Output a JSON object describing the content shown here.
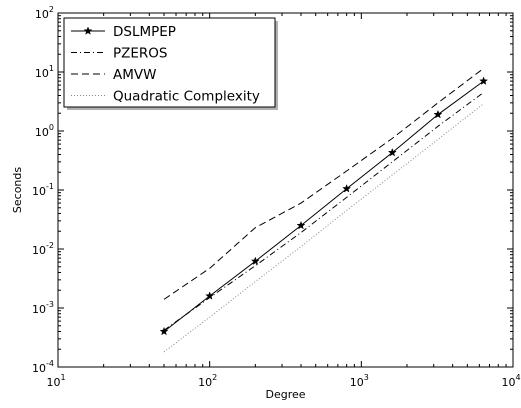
{
  "chart_data": {
    "type": "line",
    "xlabel": "Degree",
    "ylabel": "Seconds",
    "xscale": "log",
    "yscale": "log",
    "xlim": [
      10,
      10000
    ],
    "ylim": [
      0.0001,
      100
    ],
    "x_tick_labels": [
      {
        "value": 10,
        "base": "10",
        "exp": "1"
      },
      {
        "value": 100,
        "base": "10",
        "exp": "2"
      },
      {
        "value": 1000,
        "base": "10",
        "exp": "3"
      },
      {
        "value": 10000,
        "base": "10",
        "exp": "4"
      }
    ],
    "y_tick_labels": [
      {
        "value": 0.0001,
        "base": "10",
        "exp": "-4"
      },
      {
        "value": 0.001,
        "base": "10",
        "exp": "-3"
      },
      {
        "value": 0.01,
        "base": "10",
        "exp": "-2"
      },
      {
        "value": 0.1,
        "base": "10",
        "exp": "-1"
      },
      {
        "value": 1,
        "base": "10",
        "exp": "0"
      },
      {
        "value": 10,
        "base": "10",
        "exp": "1"
      },
      {
        "value": 100,
        "base": "10",
        "exp": "2"
      }
    ],
    "grid": false,
    "legend_position": "top-left",
    "series": [
      {
        "name": "DSLMPEP",
        "style": "solid-star",
        "color": "#000000",
        "x": [
          50,
          100,
          200,
          400,
          800,
          1600,
          3200,
          6400
        ],
        "y": [
          0.0004,
          0.0016,
          0.0062,
          0.025,
          0.105,
          0.43,
          1.9,
          7.0
        ]
      },
      {
        "name": "PZEROS",
        "style": "dashdot",
        "color": "#000000",
        "x": [
          50,
          100,
          200,
          400,
          800,
          1600,
          3200,
          6400
        ],
        "y": [
          0.00042,
          0.0015,
          0.0052,
          0.019,
          0.075,
          0.3,
          1.2,
          4.5
        ]
      },
      {
        "name": "AMVW",
        "style": "dashed",
        "color": "#000000",
        "x": [
          50,
          100,
          200,
          400,
          800,
          1600,
          3200,
          6400
        ],
        "y": [
          0.0014,
          0.0047,
          0.023,
          0.06,
          0.21,
          0.75,
          3.0,
          11.5
        ]
      },
      {
        "name": "Quadratic Complexity",
        "style": "dotted",
        "color": "#888888",
        "x": [
          50,
          100,
          200,
          400,
          800,
          1600,
          3200,
          6400
        ],
        "y": [
          0.00018,
          0.0007,
          0.0028,
          0.011,
          0.045,
          0.18,
          0.72,
          2.9
        ]
      }
    ]
  }
}
